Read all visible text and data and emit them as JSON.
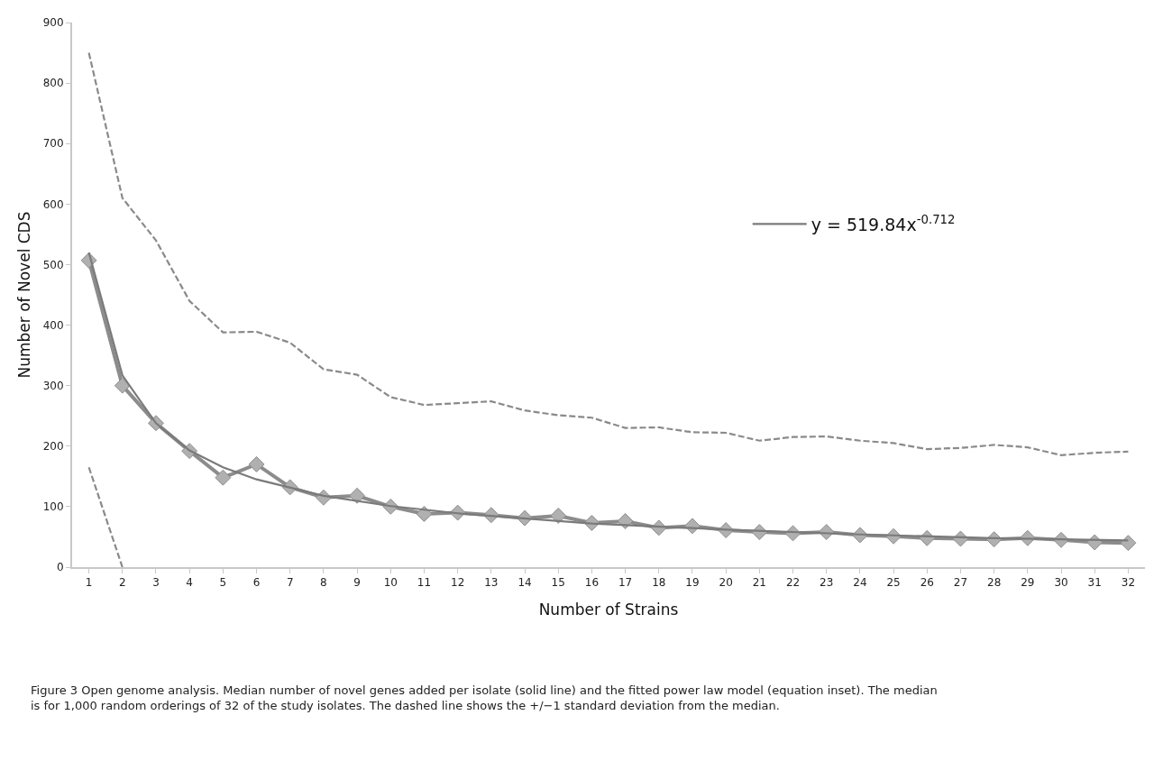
{
  "chart_data": {
    "type": "line",
    "xlabel": "Number of Strains",
    "ylabel": "Number of Novel CDS",
    "x": [
      1,
      2,
      3,
      4,
      5,
      6,
      7,
      8,
      9,
      10,
      11,
      12,
      13,
      14,
      15,
      16,
      17,
      18,
      19,
      20,
      21,
      22,
      23,
      24,
      25,
      26,
      27,
      28,
      29,
      30,
      31,
      32
    ],
    "series": [
      {
        "color": "#8c8c8c",
        "marker": "diamond",
        "line_style": "solid",
        "values": [
          507,
          300,
          238,
          192,
          148,
          170,
          132,
          115,
          118,
          100,
          88,
          90,
          86,
          81,
          85,
          73,
          76,
          65,
          68,
          61,
          58,
          56,
          58,
          53,
          51,
          48,
          47,
          46,
          48,
          45,
          41,
          40
        ]
      },
      {
        "color": "#8a8a8a",
        "marker": "none",
        "line_style": "dashed",
        "values": [
          850,
          610,
          540,
          440,
          388,
          389,
          371,
          327,
          318,
          281,
          268,
          271,
          274,
          259,
          251,
          247,
          230,
          231,
          223,
          222,
          209,
          215,
          216,
          209,
          205,
          195,
          197,
          202,
          198,
          185,
          189,
          191
        ]
      },
      {
        "color": "#8a8a8a",
        "marker": "none",
        "line_style": "dashed",
        "x": [
          1,
          2
        ],
        "values": [
          165,
          0
        ]
      },
      {
        "name": "y = 519.84x$^{-0.712}$",
        "color": "#7a7a7a",
        "marker": "none",
        "line_style": "solid",
        "x": [
          1,
          2,
          3,
          4,
          5,
          6,
          8,
          10,
          12,
          16,
          20,
          24,
          28,
          32
        ],
        "values": [
          520,
          317,
          238,
          193,
          165,
          145,
          118,
          101,
          89,
          72,
          62,
          54,
          48,
          44
        ]
      }
    ],
    "xlim": [
      0.5,
      32.5
    ],
    "xticks": [
      1,
      2,
      3,
      4,
      5,
      6,
      7,
      8,
      9,
      10,
      11,
      12,
      13,
      14,
      15,
      16,
      17,
      18,
      19,
      20,
      21,
      22,
      23,
      24,
      25,
      26,
      27,
      28,
      29,
      30,
      31,
      32
    ],
    "ylim": [
      0,
      900
    ],
    "yticks": [
      0,
      100,
      200,
      300,
      400,
      500,
      600,
      700,
      800,
      900
    ],
    "legend": "right",
    "annotations": [
      "Figure 3 Open genome analysis. Median number of novel genes added per isolate (solid line) and the fitted power law model (equation inset). The median is for 1,000 random orderings of 32 of the study isolates. The dashed line shows the +/−1 standard deviation from the median."
    ]
  }
}
